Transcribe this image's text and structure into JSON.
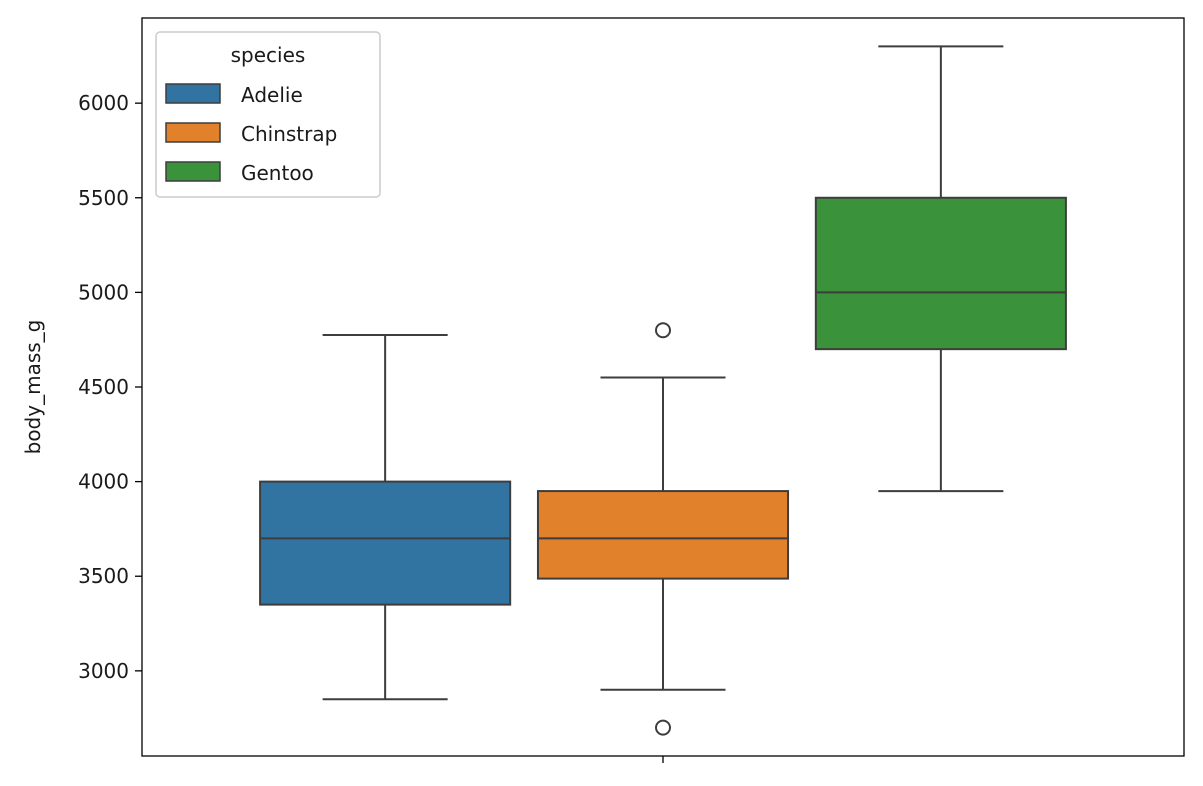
{
  "chart_data": {
    "type": "box",
    "ylabel": "body_mass_g",
    "ylim": [
      2550,
      6450
    ],
    "yticks": [
      3000,
      3500,
      4000,
      4500,
      5000,
      5500,
      6000
    ],
    "legend": {
      "title": "species",
      "placement": "top-left"
    },
    "series": [
      {
        "name": "Adelie",
        "color": "#3274a1",
        "whisker_low": 2850,
        "q1": 3350,
        "median": 3700,
        "q3": 4000,
        "whisker_high": 4775,
        "outliers": []
      },
      {
        "name": "Chinstrap",
        "color": "#e1812c",
        "whisker_low": 2900,
        "q1": 3487.5,
        "median": 3700,
        "q3": 3950,
        "whisker_high": 4550,
        "outliers": [
          4800,
          2700
        ]
      },
      {
        "name": "Gentoo",
        "color": "#3a923a",
        "whisker_low": 3950,
        "q1": 4700,
        "median": 5000,
        "q3": 5500,
        "whisker_high": 6300,
        "outliers": []
      }
    ]
  }
}
